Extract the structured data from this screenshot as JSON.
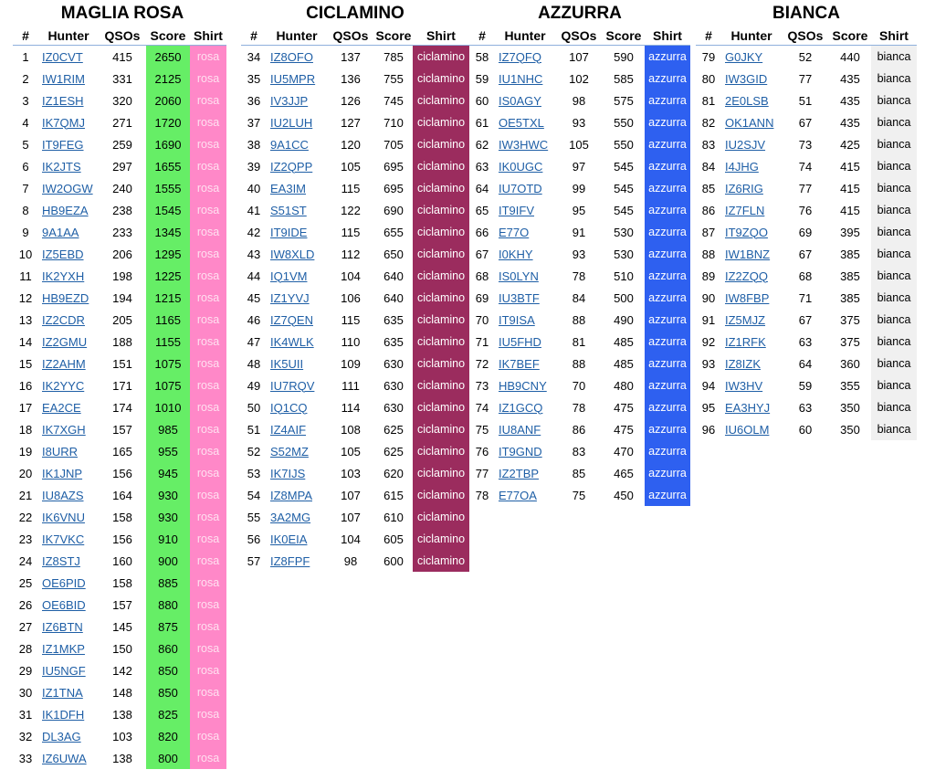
{
  "headers": {
    "num": "#",
    "hunter": "Hunter",
    "qsos": "QSOs",
    "score": "Score",
    "shirt": "Shirt"
  },
  "colors": {
    "rosa_score_bg": "#66ee66",
    "rosa_shirt_bg": "#ff88c8",
    "ciclamino_bg": "#9b2c5e",
    "azzurra_bg": "#2e60f0",
    "bianca_bg": "#f0f0f0",
    "link": "#1f5fa6"
  },
  "sections": [
    {
      "key": "rosa",
      "title": "MAGLIA ROSA",
      "rows": [
        [
          "1",
          "IZ0CVT",
          "415",
          "2650",
          "rosa"
        ],
        [
          "2",
          "IW1RIM",
          "331",
          "2125",
          "rosa"
        ],
        [
          "3",
          "IZ1ESH",
          "320",
          "2060",
          "rosa"
        ],
        [
          "4",
          "IK7QMJ",
          "271",
          "1720",
          "rosa"
        ],
        [
          "5",
          "IT9FEG",
          "259",
          "1690",
          "rosa"
        ],
        [
          "6",
          "IK2JTS",
          "297",
          "1655",
          "rosa"
        ],
        [
          "7",
          "IW2OGW",
          "240",
          "1555",
          "rosa"
        ],
        [
          "8",
          "HB9EZA",
          "238",
          "1545",
          "rosa"
        ],
        [
          "9",
          "9A1AA",
          "233",
          "1345",
          "rosa"
        ],
        [
          "10",
          "IZ5EBD",
          "206",
          "1295",
          "rosa"
        ],
        [
          "11",
          "IK2YXH",
          "198",
          "1225",
          "rosa"
        ],
        [
          "12",
          "HB9EZD",
          "194",
          "1215",
          "rosa"
        ],
        [
          "13",
          "IZ2CDR",
          "205",
          "1165",
          "rosa"
        ],
        [
          "14",
          "IZ2GMU",
          "188",
          "1155",
          "rosa"
        ],
        [
          "15",
          "IZ2AHM",
          "151",
          "1075",
          "rosa"
        ],
        [
          "16",
          "IK2YYC",
          "171",
          "1075",
          "rosa"
        ],
        [
          "17",
          "EA2CE",
          "174",
          "1010",
          "rosa"
        ],
        [
          "18",
          "IK7XGH",
          "157",
          "985",
          "rosa"
        ],
        [
          "19",
          "I8URR",
          "165",
          "955",
          "rosa"
        ],
        [
          "20",
          "IK1JNP",
          "156",
          "945",
          "rosa"
        ],
        [
          "21",
          "IU8AZS",
          "164",
          "930",
          "rosa"
        ],
        [
          "22",
          "IK6VNU",
          "158",
          "930",
          "rosa"
        ],
        [
          "23",
          "IK7VKC",
          "156",
          "910",
          "rosa"
        ],
        [
          "24",
          "IZ8STJ",
          "160",
          "900",
          "rosa"
        ],
        [
          "25",
          "OE6PID",
          "158",
          "885",
          "rosa"
        ],
        [
          "26",
          "OE6BID",
          "157",
          "880",
          "rosa"
        ],
        [
          "27",
          "IZ6BTN",
          "145",
          "875",
          "rosa"
        ],
        [
          "28",
          "IZ1MKP",
          "150",
          "860",
          "rosa"
        ],
        [
          "29",
          "IU5NGF",
          "142",
          "850",
          "rosa"
        ],
        [
          "30",
          "IZ1TNA",
          "148",
          "850",
          "rosa"
        ],
        [
          "31",
          "IK1DFH",
          "138",
          "825",
          "rosa"
        ],
        [
          "32",
          "DL3AG",
          "103",
          "820",
          "rosa"
        ],
        [
          "33",
          "IZ6UWA",
          "138",
          "800",
          "rosa"
        ]
      ]
    },
    {
      "key": "ciclamino",
      "title": "CICLAMINO",
      "rows": [
        [
          "34",
          "IZ8OFO",
          "137",
          "785",
          "ciclamino"
        ],
        [
          "35",
          "IU5MPR",
          "136",
          "755",
          "ciclamino"
        ],
        [
          "36",
          "IV3JJP",
          "126",
          "745",
          "ciclamino"
        ],
        [
          "37",
          "IU2LUH",
          "127",
          "710",
          "ciclamino"
        ],
        [
          "38",
          "9A1CC",
          "120",
          "705",
          "ciclamino"
        ],
        [
          "39",
          "IZ2QPP",
          "105",
          "695",
          "ciclamino"
        ],
        [
          "40",
          "EA3IM",
          "115",
          "695",
          "ciclamino"
        ],
        [
          "41",
          "S51ST",
          "122",
          "690",
          "ciclamino"
        ],
        [
          "42",
          "IT9IDE",
          "115",
          "655",
          "ciclamino"
        ],
        [
          "43",
          "IW8XLD",
          "112",
          "650",
          "ciclamino"
        ],
        [
          "44",
          "IQ1VM",
          "104",
          "640",
          "ciclamino"
        ],
        [
          "45",
          "IZ1YVJ",
          "106",
          "640",
          "ciclamino"
        ],
        [
          "46",
          "IZ7QEN",
          "115",
          "635",
          "ciclamino"
        ],
        [
          "47",
          "IK4WLK",
          "110",
          "635",
          "ciclamino"
        ],
        [
          "48",
          "IK5UII",
          "109",
          "630",
          "ciclamino"
        ],
        [
          "49",
          "IU7RQV",
          "111",
          "630",
          "ciclamino"
        ],
        [
          "50",
          "IQ1CQ",
          "114",
          "630",
          "ciclamino"
        ],
        [
          "51",
          "IZ4AIF",
          "108",
          "625",
          "ciclamino"
        ],
        [
          "52",
          "S52MZ",
          "105",
          "625",
          "ciclamino"
        ],
        [
          "53",
          "IK7IJS",
          "103",
          "620",
          "ciclamino"
        ],
        [
          "54",
          "IZ8MPA",
          "107",
          "615",
          "ciclamino"
        ],
        [
          "55",
          "3A2MG",
          "107",
          "610",
          "ciclamino"
        ],
        [
          "56",
          "IK0EIA",
          "104",
          "605",
          "ciclamino"
        ],
        [
          "57",
          "IZ8FPF",
          "98",
          "600",
          "ciclamino"
        ]
      ]
    },
    {
      "key": "azzurra",
      "title": "AZZURRA",
      "rows": [
        [
          "58",
          "IZ7QFQ",
          "107",
          "590",
          "azzurra"
        ],
        [
          "59",
          "IU1NHC",
          "102",
          "585",
          "azzurra"
        ],
        [
          "60",
          "IS0AGY",
          "98",
          "575",
          "azzurra"
        ],
        [
          "61",
          "OE5TXL",
          "93",
          "550",
          "azzurra"
        ],
        [
          "62",
          "IW3HWC",
          "105",
          "550",
          "azzurra"
        ],
        [
          "63",
          "IK0UGC",
          "97",
          "545",
          "azzurra"
        ],
        [
          "64",
          "IU7OTD",
          "99",
          "545",
          "azzurra"
        ],
        [
          "65",
          "IT9IFV",
          "95",
          "545",
          "azzurra"
        ],
        [
          "66",
          "E77O",
          "91",
          "530",
          "azzurra"
        ],
        [
          "67",
          "I0KHY",
          "93",
          "530",
          "azzurra"
        ],
        [
          "68",
          "IS0LYN",
          "78",
          "510",
          "azzurra"
        ],
        [
          "69",
          "IU3BTF",
          "84",
          "500",
          "azzurra"
        ],
        [
          "70",
          "IT9ISA",
          "88",
          "490",
          "azzurra"
        ],
        [
          "71",
          "IU5FHD",
          "81",
          "485",
          "azzurra"
        ],
        [
          "72",
          "IK7BEF",
          "88",
          "485",
          "azzurra"
        ],
        [
          "73",
          "HB9CNY",
          "70",
          "480",
          "azzurra"
        ],
        [
          "74",
          "IZ1GCQ",
          "78",
          "475",
          "azzurra"
        ],
        [
          "75",
          "IU8ANF",
          "86",
          "475",
          "azzurra"
        ],
        [
          "76",
          "IT9GND",
          "83",
          "470",
          "azzurra"
        ],
        [
          "77",
          "IZ2TBP",
          "85",
          "465",
          "azzurra"
        ],
        [
          "78",
          "E77OA",
          "75",
          "450",
          "azzurra"
        ]
      ]
    },
    {
      "key": "bianca",
      "title": "BIANCA",
      "rows": [
        [
          "79",
          "G0JKY",
          "52",
          "440",
          "bianca"
        ],
        [
          "80",
          "IW3GID",
          "77",
          "435",
          "bianca"
        ],
        [
          "81",
          "2E0LSB",
          "51",
          "435",
          "bianca"
        ],
        [
          "82",
          "OK1ANN",
          "67",
          "435",
          "bianca"
        ],
        [
          "83",
          "IU2SJV",
          "73",
          "425",
          "bianca"
        ],
        [
          "84",
          "I4JHG",
          "74",
          "415",
          "bianca"
        ],
        [
          "85",
          "IZ6RIG",
          "77",
          "415",
          "bianca"
        ],
        [
          "86",
          "IZ7FLN",
          "76",
          "415",
          "bianca"
        ],
        [
          "87",
          "IT9ZQO",
          "69",
          "395",
          "bianca"
        ],
        [
          "88",
          "IW1BNZ",
          "67",
          "385",
          "bianca"
        ],
        [
          "89",
          "IZ2ZQQ",
          "68",
          "385",
          "bianca"
        ],
        [
          "90",
          "IW8FBP",
          "71",
          "385",
          "bianca"
        ],
        [
          "91",
          "IZ5MJZ",
          "67",
          "375",
          "bianca"
        ],
        [
          "92",
          "IZ1RFK",
          "63",
          "375",
          "bianca"
        ],
        [
          "93",
          "IZ8IZK",
          "64",
          "360",
          "bianca"
        ],
        [
          "94",
          "IW3HV",
          "59",
          "355",
          "bianca"
        ],
        [
          "95",
          "EA3HYJ",
          "63",
          "350",
          "bianca"
        ],
        [
          "96",
          "IU6OLM",
          "60",
          "350",
          "bianca"
        ]
      ]
    }
  ]
}
